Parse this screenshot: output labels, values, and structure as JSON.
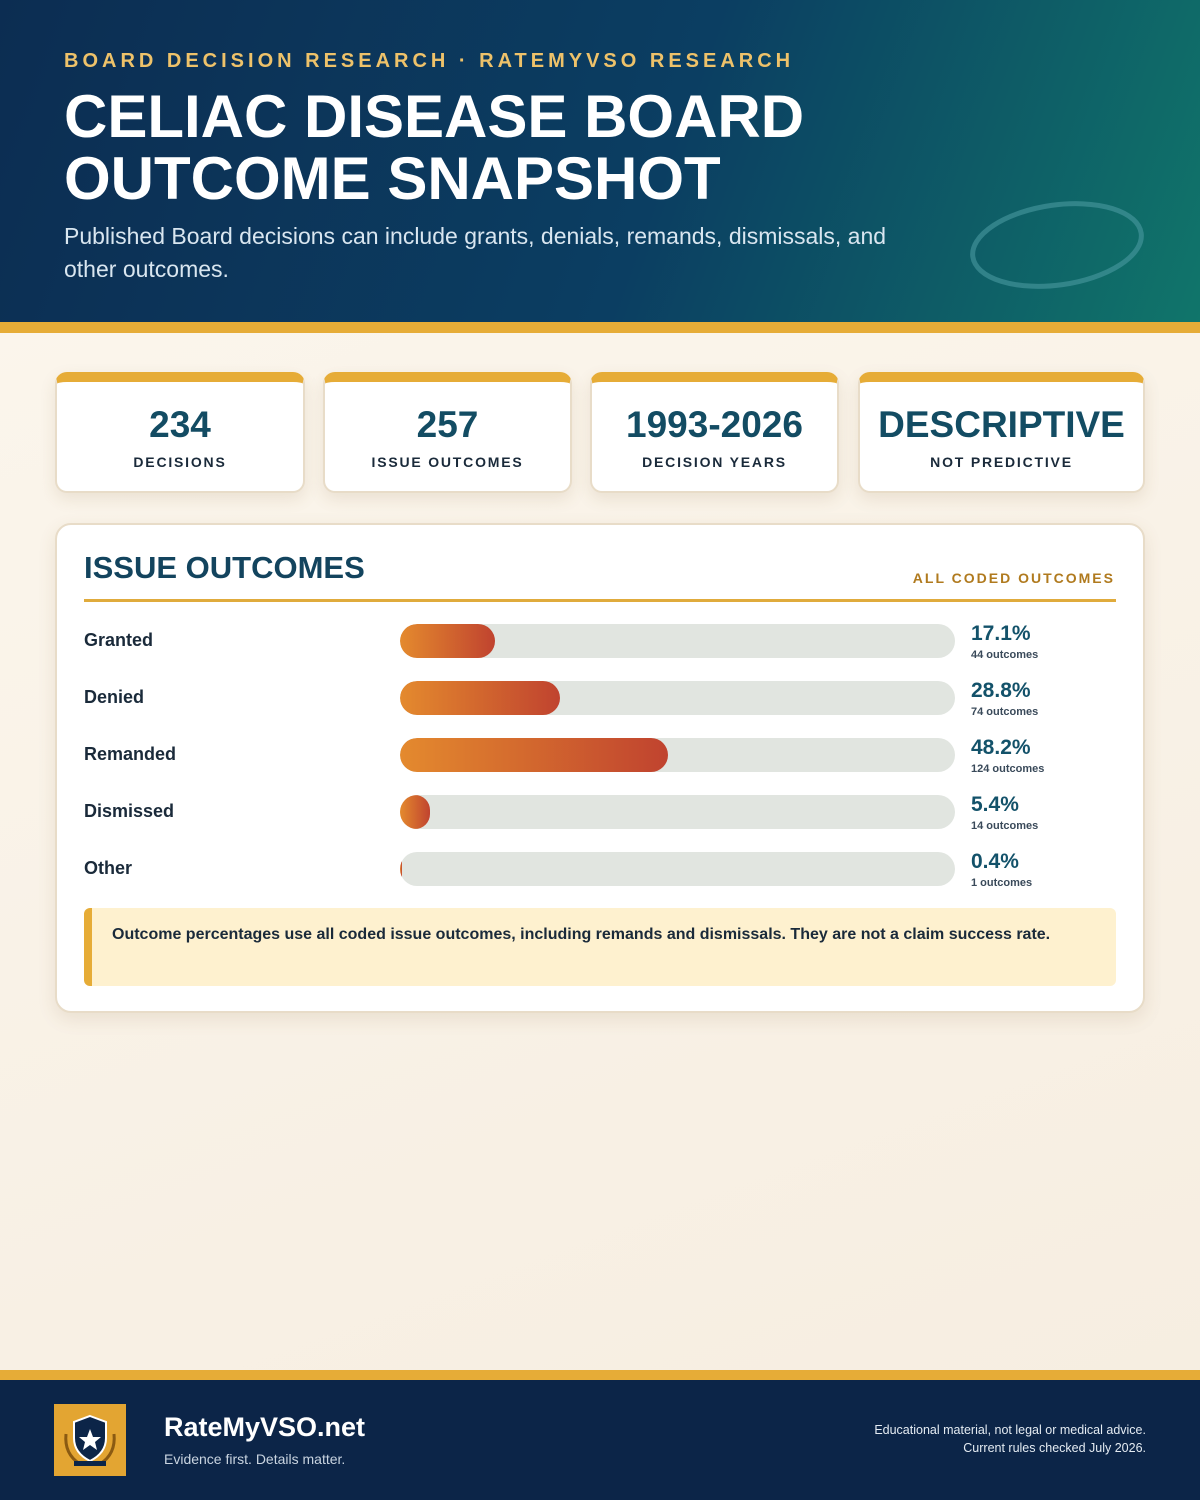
{
  "header": {
    "kicker": "BOARD DECISION RESEARCH · RATEMYVSO RESEARCH",
    "title_lines": [
      "CELIAC DISEASE BOARD",
      "OUTCOME SNAPSHOT"
    ],
    "subtitle": "Published Board decisions can include grants, denials, remands, dismissals, and other outcomes."
  },
  "stats": [
    {
      "value": "234",
      "label": "DECISIONS"
    },
    {
      "value": "257",
      "label": "ISSUE OUTCOMES"
    },
    {
      "value": "1993-2026",
      "label": "DECISION YEARS"
    },
    {
      "value": "DESCRIPTIVE",
      "label": "NOT PREDICTIVE"
    }
  ],
  "chart_data": {
    "type": "bar",
    "orientation": "horizontal",
    "title": "ISSUE OUTCOMES",
    "subtitle": "ALL CODED OUTCOMES",
    "categories": [
      "Granted",
      "Denied",
      "Remanded",
      "Dismissed",
      "Other"
    ],
    "values": [
      17.1,
      28.8,
      48.2,
      5.4,
      0.4
    ],
    "value_labels": [
      "17.1%",
      "28.8%",
      "48.2%",
      "5.4%",
      "0.4%"
    ],
    "value_notes": [
      "44 outcomes",
      "74 outcomes",
      "124 outcomes",
      "14 outcomes",
      "1 outcomes"
    ],
    "xlim": [
      0,
      100
    ],
    "color": [
      "#e48a2e",
      "#c0432f"
    ]
  },
  "note": "Outcome percentages use all coded issue outcomes, including remands and dismissals. They are not a claim success rate.",
  "footer": {
    "brand": "RateMyVSO.net",
    "tagline": "Evidence first. Details matter.",
    "disclaimer_lines": [
      "Educational material, not legal or medical advice.",
      "Current rules checked July 2026."
    ]
  }
}
